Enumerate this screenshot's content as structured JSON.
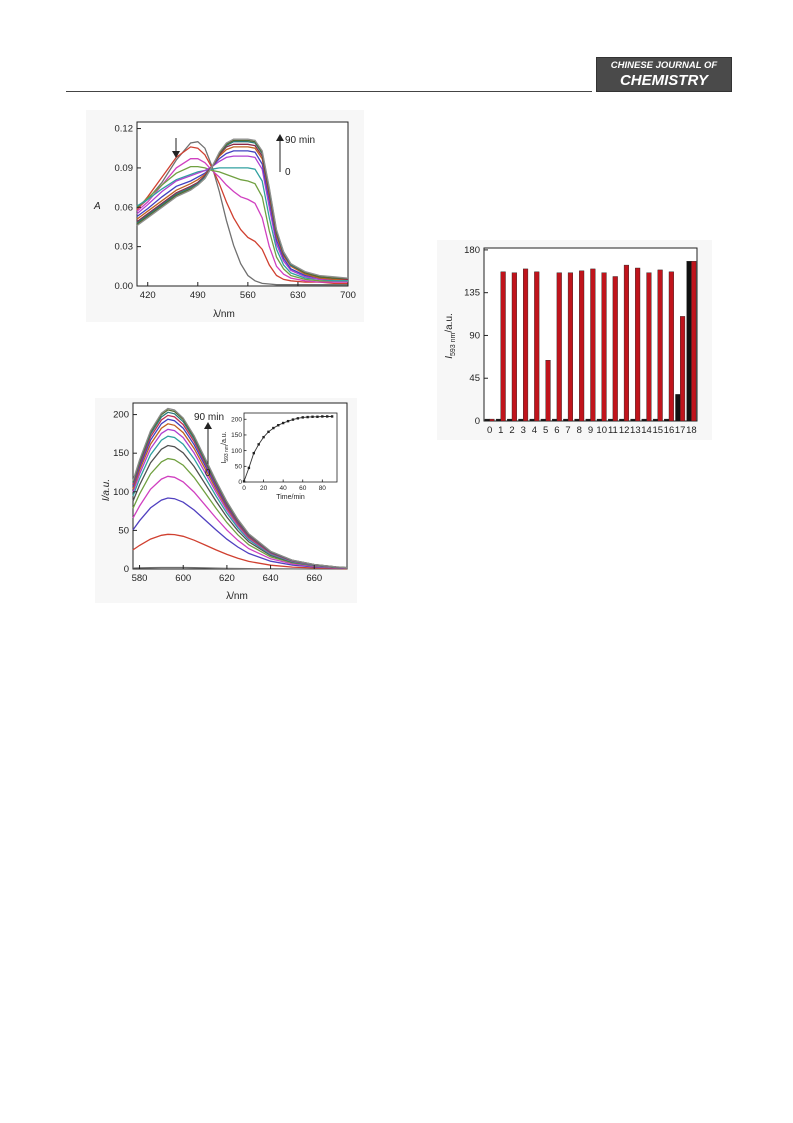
{
  "header": {
    "journal_line1": "CHINESE JOURNAL OF",
    "journal_line2": "CHEMISTRY"
  },
  "chart_data": [
    {
      "type": "line",
      "ylabel": "A",
      "xlabel": "λ/nm",
      "xlim": [
        405,
        700
      ],
      "ylim": [
        0,
        0.125
      ],
      "xticks": [
        "420",
        "490",
        "560",
        "630",
        "700"
      ],
      "yticks": [
        "0.00",
        "0.03",
        "0.06",
        "0.09",
        "0.12"
      ],
      "annotations": {
        "time_top": "90 min",
        "time_bottom": "0"
      },
      "x": [
        405,
        420,
        440,
        460,
        480,
        490,
        500,
        510,
        520,
        530,
        540,
        550,
        560,
        570,
        580,
        590,
        600,
        610,
        620,
        640,
        660,
        680,
        700
      ],
      "series": [
        {
          "values": [
            0.059,
            0.066,
            0.079,
            0.096,
            0.109,
            0.11,
            0.105,
            0.091,
            0.072,
            0.05,
            0.031,
            0.017,
            0.008,
            0.004,
            0.002,
            0.0015,
            0.001,
            0.001,
            0.001,
            0.001,
            0.001,
            0.001,
            0.001
          ],
          "color": "#707070"
        },
        {
          "values": [
            0.058,
            0.068,
            0.083,
            0.098,
            0.106,
            0.105,
            0.1,
            0.09,
            0.078,
            0.064,
            0.052,
            0.043,
            0.037,
            0.034,
            0.028,
            0.016,
            0.008,
            0.005,
            0.004,
            0.003,
            0.003,
            0.002,
            0.002
          ],
          "color": "#d04030"
        },
        {
          "values": [
            0.057,
            0.064,
            0.077,
            0.09,
            0.097,
            0.097,
            0.094,
            0.088,
            0.083,
            0.077,
            0.072,
            0.068,
            0.066,
            0.063,
            0.052,
            0.03,
            0.015,
            0.009,
            0.006,
            0.004,
            0.003,
            0.003,
            0.003
          ],
          "color": "#d040c0"
        },
        {
          "values": [
            0.06,
            0.067,
            0.077,
            0.086,
            0.091,
            0.091,
            0.09,
            0.088,
            0.087,
            0.085,
            0.083,
            0.081,
            0.08,
            0.078,
            0.068,
            0.042,
            0.022,
            0.013,
            0.008,
            0.005,
            0.004,
            0.004,
            0.004
          ],
          "color": "#70a040"
        },
        {
          "values": [
            0.061,
            0.066,
            0.074,
            0.081,
            0.085,
            0.087,
            0.088,
            0.089,
            0.09,
            0.09,
            0.09,
            0.09,
            0.09,
            0.089,
            0.08,
            0.052,
            0.028,
            0.016,
            0.01,
            0.006,
            0.005,
            0.004,
            0.004
          ],
          "color": "#30a0a0"
        },
        {
          "values": [
            0.055,
            0.062,
            0.072,
            0.08,
            0.084,
            0.086,
            0.088,
            0.091,
            0.095,
            0.098,
            0.099,
            0.099,
            0.099,
            0.098,
            0.089,
            0.06,
            0.032,
            0.019,
            0.012,
            0.007,
            0.005,
            0.005,
            0.005
          ],
          "color": "#b040d0"
        },
        {
          "values": [
            0.053,
            0.059,
            0.068,
            0.076,
            0.08,
            0.083,
            0.086,
            0.091,
            0.097,
            0.101,
            0.103,
            0.103,
            0.103,
            0.102,
            0.093,
            0.065,
            0.035,
            0.021,
            0.013,
            0.008,
            0.006,
            0.005,
            0.005
          ],
          "color": "#4040c0"
        },
        {
          "values": [
            0.051,
            0.057,
            0.065,
            0.073,
            0.078,
            0.081,
            0.085,
            0.091,
            0.099,
            0.104,
            0.106,
            0.106,
            0.106,
            0.105,
            0.097,
            0.069,
            0.038,
            0.023,
            0.015,
            0.009,
            0.006,
            0.005,
            0.005
          ],
          "color": "#c06020"
        },
        {
          "values": [
            0.049,
            0.055,
            0.063,
            0.071,
            0.076,
            0.079,
            0.084,
            0.091,
            0.1,
            0.106,
            0.108,
            0.108,
            0.108,
            0.107,
            0.099,
            0.071,
            0.04,
            0.024,
            0.016,
            0.01,
            0.007,
            0.006,
            0.005
          ],
          "color": "#8a2a4a"
        },
        {
          "values": [
            0.048,
            0.054,
            0.062,
            0.07,
            0.075,
            0.078,
            0.083,
            0.091,
            0.101,
            0.107,
            0.11,
            0.11,
            0.11,
            0.109,
            0.101,
            0.073,
            0.041,
            0.025,
            0.016,
            0.01,
            0.007,
            0.006,
            0.006
          ],
          "color": "#2a7a7a"
        },
        {
          "values": [
            0.047,
            0.053,
            0.061,
            0.069,
            0.074,
            0.077,
            0.082,
            0.091,
            0.101,
            0.108,
            0.111,
            0.111,
            0.111,
            0.11,
            0.102,
            0.074,
            0.042,
            0.026,
            0.017,
            0.01,
            0.007,
            0.006,
            0.006
          ],
          "color": "#556b2f"
        },
        {
          "values": [
            0.046,
            0.052,
            0.06,
            0.068,
            0.073,
            0.077,
            0.082,
            0.091,
            0.102,
            0.109,
            0.112,
            0.112,
            0.112,
            0.111,
            0.103,
            0.075,
            0.043,
            0.026,
            0.017,
            0.011,
            0.008,
            0.007,
            0.006
          ],
          "color": "#909090"
        }
      ]
    },
    {
      "type": "line",
      "ylabel": "I/a.u.",
      "xlabel": "λ/nm",
      "xlim": [
        577,
        675
      ],
      "ylim": [
        0,
        215
      ],
      "xticks": [
        "580",
        "600",
        "620",
        "640",
        "660"
      ],
      "yticks": [
        "0",
        "50",
        "100",
        "150",
        "200"
      ],
      "annotations": {
        "time_top": "90 min",
        "time_bottom": "0"
      },
      "x": [
        577,
        580,
        585,
        590,
        593,
        596,
        600,
        605,
        610,
        615,
        620,
        625,
        630,
        640,
        650,
        660,
        670,
        675
      ],
      "peaks": [
        {
          "peak": 2,
          "color": "#707070"
        },
        {
          "peak": 45,
          "color": "#d04030"
        },
        {
          "peak": 92,
          "color": "#5040c0"
        },
        {
          "peak": 120,
          "color": "#d040c0"
        },
        {
          "peak": 143,
          "color": "#70a040"
        },
        {
          "peak": 160,
          "color": "#505050"
        },
        {
          "peak": 172,
          "color": "#30a0a0"
        },
        {
          "peak": 181,
          "color": "#b040d0"
        },
        {
          "peak": 188,
          "color": "#c06020"
        },
        {
          "peak": 194,
          "color": "#4040c0"
        },
        {
          "peak": 199,
          "color": "#c03050"
        },
        {
          "peak": 203,
          "color": "#2a7a7a"
        },
        {
          "peak": 206,
          "color": "#556b2f"
        },
        {
          "peak": 208,
          "color": "#8a8a8a"
        }
      ],
      "profile": [
        0.55,
        0.68,
        0.86,
        0.97,
        1.0,
        0.99,
        0.94,
        0.83,
        0.69,
        0.55,
        0.42,
        0.31,
        0.22,
        0.11,
        0.055,
        0.028,
        0.013,
        0.008
      ],
      "inset": {
        "type": "scatter",
        "xlabel": "Time/min",
        "ylabel": "I593 nm/a.u.",
        "ylabel_main": "I",
        "ylabel_sub": "593 nm",
        "ylabel_unit": "/a.u.",
        "xlim": [
          0,
          95
        ],
        "ylim": [
          0,
          220
        ],
        "xticks": [
          "0",
          "20",
          "40",
          "60",
          "80"
        ],
        "yticks": [
          "0",
          "50",
          "100",
          "150",
          "200"
        ],
        "x": [
          0,
          5,
          10,
          15,
          20,
          25,
          30,
          35,
          40,
          45,
          50,
          55,
          60,
          65,
          70,
          75,
          80,
          85,
          90
        ],
        "y": [
          2,
          45,
          92,
          120,
          143,
          160,
          172,
          181,
          188,
          194,
          199,
          203,
          206,
          207,
          208,
          208,
          209,
          209,
          209
        ]
      }
    },
    {
      "type": "bar",
      "ylabel": "I593 nm/a.u.",
      "ylabel_main": "I",
      "ylabel_sub": "593 nm",
      "ylabel_unit": "/a.u.",
      "ylim": [
        0,
        182
      ],
      "yticks": [
        "0",
        "45",
        "90",
        "135",
        "180"
      ],
      "categories": [
        "0",
        "1",
        "2",
        "3",
        "4",
        "5",
        "6",
        "7",
        "8",
        "9",
        "10",
        "11",
        "12",
        "13",
        "14",
        "15",
        "16",
        "17",
        "18"
      ],
      "series": [
        {
          "color": "#111111",
          "values": [
            2,
            2,
            2,
            2,
            2,
            2,
            2,
            2,
            2,
            2,
            2,
            2,
            2,
            2,
            2,
            2,
            2,
            28,
            168
          ]
        },
        {
          "color": "#c0141c",
          "values": [
            2,
            157,
            156,
            160,
            157,
            64,
            156,
            156,
            158,
            160,
            156,
            152,
            164,
            161,
            156,
            159,
            157,
            110,
            168
          ]
        }
      ]
    }
  ]
}
